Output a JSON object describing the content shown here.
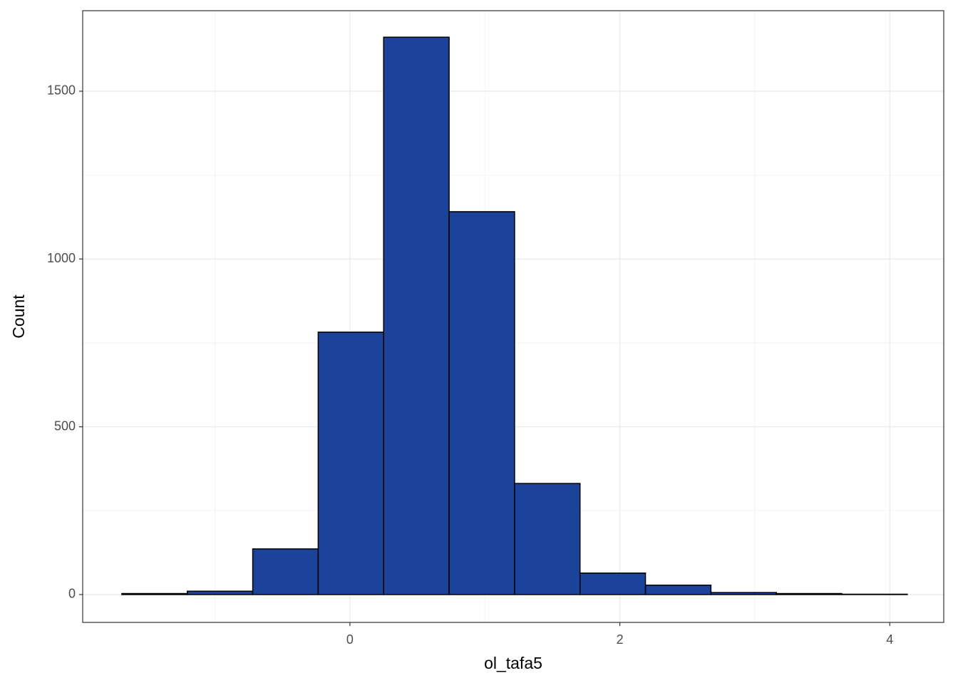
{
  "chart_data": {
    "type": "histogram",
    "x_label": "ol_tafa5",
    "y_label": "Count",
    "bins": [
      -1.69,
      -1.205,
      -0.72,
      -0.235,
      0.25,
      0.735,
      1.22,
      1.705,
      2.19,
      2.675,
      3.16,
      3.645,
      4.13
    ],
    "values": [
      3,
      10,
      136,
      782,
      1661,
      1141,
      331,
      64,
      28,
      6,
      3,
      1
    ],
    "color": "#1a4399",
    "edge_color": "#000000",
    "xlim": [
      -1.98,
      4.4
    ],
    "ylim": [
      -83,
      1740
    ],
    "xticks": [
      0,
      2,
      4
    ],
    "yticks": [
      0,
      500,
      1000,
      1500
    ],
    "minor_xticks": [
      -1,
      1,
      3
    ],
    "minor_yticks": [
      250,
      750,
      1250
    ],
    "grid": true
  }
}
